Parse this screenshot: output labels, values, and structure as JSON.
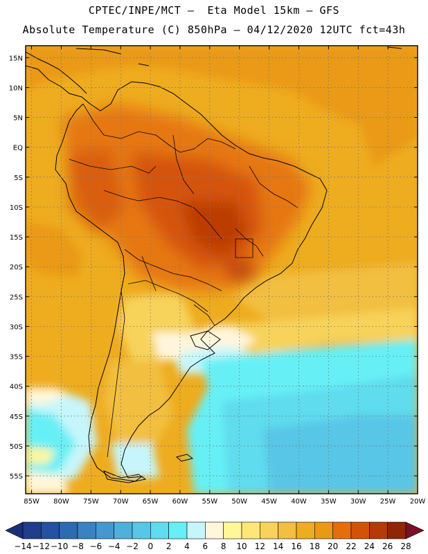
{
  "title": {
    "line1": "CPTEC/INPE/MCT –  Eta Model 15km – GFS",
    "line2": "Absolute Temperature (C) 850hPa – 04/12/2020 12UTC fct=43h"
  },
  "map": {
    "lat_labels": [
      "15N",
      "10N",
      "5N",
      "EQ",
      "5S",
      "10S",
      "15S",
      "20S",
      "25S",
      "30S",
      "35S",
      "40S",
      "45S",
      "50S",
      "55S"
    ],
    "lat_values": [
      15,
      10,
      5,
      0,
      -5,
      -10,
      -15,
      -20,
      -25,
      -30,
      -35,
      -40,
      -45,
      -50,
      -55
    ],
    "lon_labels": [
      "85W",
      "80W",
      "75W",
      "70W",
      "65W",
      "60W",
      "55W",
      "50W",
      "45W",
      "40W",
      "35W",
      "30W",
      "25W",
      "20W"
    ],
    "lon_values": [
      -85,
      -80,
      -75,
      -70,
      -65,
      -60,
      -55,
      -50,
      -45,
      -40,
      -35,
      -30,
      -25,
      -20
    ],
    "extent": {
      "lon": [
        -86,
        -20
      ],
      "lat": [
        -58,
        17
      ]
    }
  },
  "colorbar": {
    "labels": [
      "-14",
      "-12",
      "-10",
      "-8",
      "-6",
      "-4",
      "-2",
      "0",
      "2",
      "4",
      "6",
      "8",
      "10",
      "12",
      "14",
      "16",
      "18",
      "20",
      "22",
      "24",
      "26",
      "28"
    ],
    "colors": [
      "#1f3d8a",
      "#2452a0",
      "#2c6ab2",
      "#3a82c2",
      "#4597cf",
      "#4fb0dc",
      "#58c6e6",
      "#5fdcee",
      "#66f0f6",
      "#c6f6fb",
      "#fff6dc",
      "#fff79a",
      "#fde877",
      "#f7d35a",
      "#f2bf3f",
      "#eeac1f",
      "#ea9a12",
      "#e56e0c",
      "#d45208",
      "#b63a05",
      "#902606"
    ],
    "under_color": "#1a2f78",
    "over_color": "#7a0f28"
  }
}
